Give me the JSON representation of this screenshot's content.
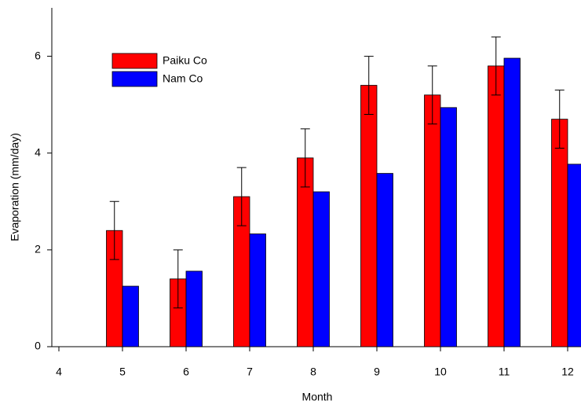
{
  "chart_data": {
    "type": "bar",
    "x_label": "Month",
    "y_label": "Evaporation (mm/day)",
    "x": [
      5,
      6,
      7,
      8,
      9,
      10,
      11,
      12
    ],
    "series": [
      {
        "name": "Paiku Co",
        "color": "#ff0000",
        "values": [
          2.4,
          1.4,
          3.1,
          3.9,
          5.4,
          5.2,
          5.8,
          4.7
        ],
        "errors": [
          0.6,
          0.6,
          0.6,
          0.6,
          0.6,
          0.6,
          0.6,
          0.6
        ]
      },
      {
        "name": "Nam Co",
        "color": "#0000ff",
        "values": [
          1.25,
          1.56,
          2.33,
          3.2,
          3.58,
          4.94,
          5.96,
          3.77
        ]
      }
    ],
    "xlim": [
      4,
      12.21
    ],
    "xticks": [
      4,
      5,
      6,
      7,
      8,
      9,
      10,
      11,
      12
    ],
    "ylim": [
      0,
      7
    ],
    "yticks": [
      0,
      2,
      4,
      6
    ],
    "grid": false,
    "legend": "upper left"
  }
}
